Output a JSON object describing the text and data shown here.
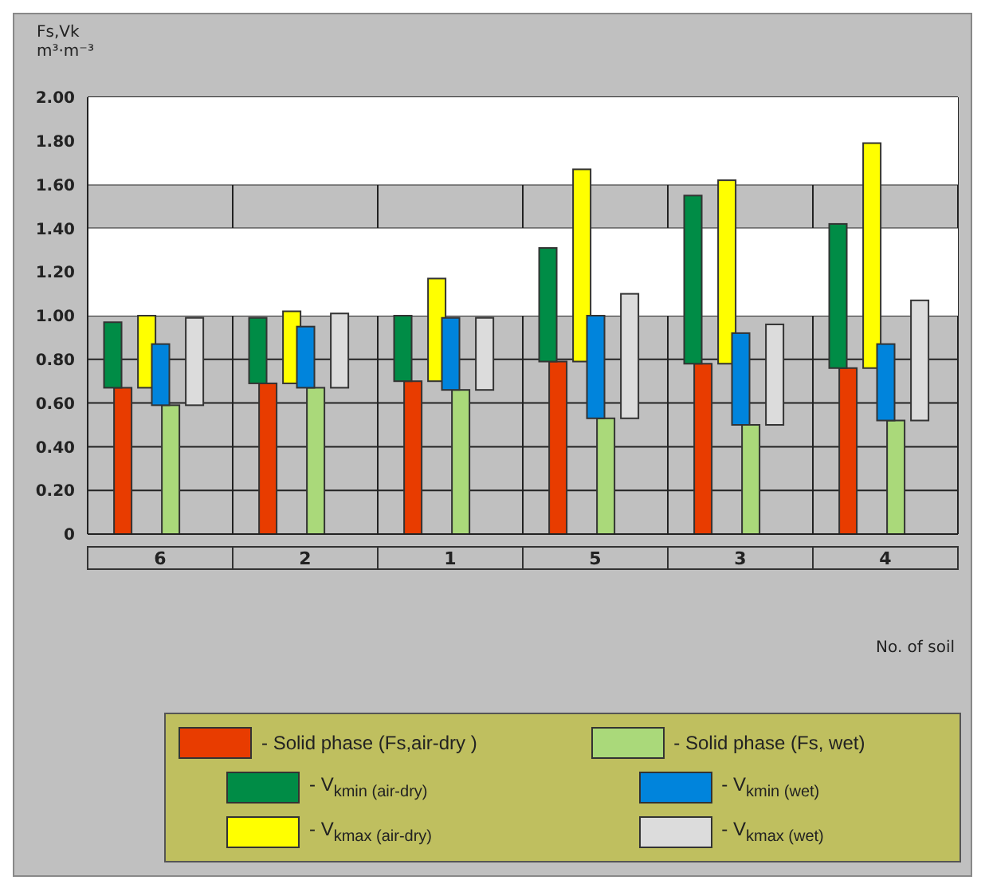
{
  "chart_data": {
    "type": "bar",
    "ylabel": "Fs,Vk m³·m⁻³",
    "xlabel": "No. of soil",
    "categories": [
      "6",
      "2",
      "1",
      "5",
      "3",
      "4"
    ],
    "series": [
      {
        "name": "- Solid phase (Fs,air-dry )",
        "color": "#e83c00",
        "values": [
          0.67,
          0.69,
          0.7,
          0.79,
          0.78,
          0.76
        ]
      },
      {
        "name": "- V$_{kmin (air-dry)}$",
        "color": "#008c46",
        "base": [
          0.67,
          0.69,
          0.7,
          0.79,
          0.78,
          0.76
        ],
        "values": [
          0.3,
          0.3,
          0.3,
          0.52,
          0.77,
          0.66
        ]
      },
      {
        "name": "- V$_{kmax (air-dry)}$",
        "color": "#ffff00",
        "base": [
          0.67,
          0.69,
          0.7,
          0.79,
          0.78,
          0.76
        ],
        "values": [
          0.33,
          0.33,
          0.47,
          0.88,
          0.84,
          1.03
        ]
      },
      {
        "name": "- Solid phase (Fs, wet)",
        "color": "#aad97a",
        "values": [
          0.59,
          0.67,
          0.66,
          0.53,
          0.5,
          0.52
        ]
      },
      {
        "name": "- V$_{kmin (wet)}$",
        "color": "#0084dc",
        "base": [
          0.59,
          0.67,
          0.66,
          0.53,
          0.5,
          0.52
        ],
        "values": [
          0.28,
          0.28,
          0.33,
          0.47,
          0.42,
          0.35
        ]
      },
      {
        "name": "- V$_{kmax (wet)}$",
        "color": "#dcdcdc",
        "base": [
          0.59,
          0.67,
          0.66,
          0.53,
          0.5,
          0.52
        ],
        "values": [
          0.4,
          0.34,
          0.33,
          0.57,
          0.46,
          0.55
        ]
      }
    ],
    "ylim": [
      0,
      2
    ],
    "yticks": [
      {
        "value": 0,
        "label": "0"
      },
      {
        "value": 0.2,
        "label": "0.20"
      },
      {
        "value": 0.4,
        "label": "0.40"
      },
      {
        "value": 0.6,
        "label": "0.60"
      },
      {
        "value": 0.8,
        "label": "0.80"
      },
      {
        "value": 1,
        "label": "1.00"
      },
      {
        "value": 1.2,
        "label": "1.20"
      },
      {
        "value": 1.4,
        "label": "1.40"
      },
      {
        "value": 1.6,
        "label": "1.60"
      },
      {
        "value": 1.8,
        "label": "1.80"
      },
      {
        "value": 2,
        "label": "2.00"
      }
    ],
    "bands": [
      {
        "axis": "y",
        "from": 1.0,
        "to": 1.4,
        "color": "#ffffff"
      },
      {
        "axis": "y",
        "from": 1.6,
        "to": 2.0,
        "color": "#ffffff"
      }
    ],
    "grid": true,
    "legend": "bottom"
  }
}
